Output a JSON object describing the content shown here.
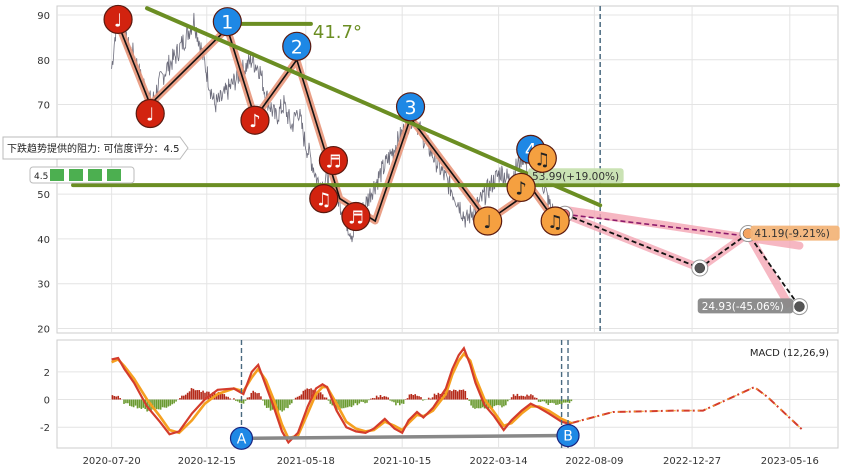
{
  "chart_data": {
    "type": "line",
    "colors": {
      "price": "#555566",
      "trend": "#6b8e23",
      "wave": "#e8967a",
      "red_marker": "#d2230f",
      "blue_marker": "#1e88e5",
      "orange_marker": "#f5a040",
      "macd_line": "#d43c2c",
      "signal_line": "#f5a020",
      "hist_pos": "#b52a1a",
      "hist_neg": "#6a9a30",
      "forecast": "#f4a6b4"
    },
    "x_tick_labels": [
      "2020-07-20",
      "2020-12-15",
      "2021-05-18",
      "2021-10-15",
      "2022-03-14",
      "2022-08-09",
      "2022-12-27",
      "2023-05-16"
    ],
    "x_ticks": [
      0,
      148,
      302,
      452,
      602,
      751,
      903,
      1055
    ],
    "current_index": 760,
    "price_axis": {
      "ylim": [
        19,
        92
      ],
      "ticks": [
        20,
        30,
        40,
        50,
        60,
        70,
        80,
        90
      ]
    },
    "macd_axis": {
      "ylim": [
        -3.5,
        4.3
      ],
      "ticks": [
        -2,
        0,
        2
      ],
      "label": "MACD (12,26,9)"
    },
    "price_series": [
      [
        0,
        78
      ],
      [
        5,
        85
      ],
      [
        10,
        91
      ],
      [
        15,
        87
      ],
      [
        25,
        83
      ],
      [
        35,
        81
      ],
      [
        45,
        76
      ],
      [
        55,
        73
      ],
      [
        62,
        70
      ],
      [
        72,
        74
      ],
      [
        85,
        78
      ],
      [
        100,
        81
      ],
      [
        115,
        85
      ],
      [
        128,
        89
      ],
      [
        140,
        82
      ],
      [
        150,
        76
      ],
      [
        160,
        70
      ],
      [
        170,
        71
      ],
      [
        185,
        74
      ],
      [
        200,
        77
      ],
      [
        218,
        80
      ],
      [
        230,
        78
      ],
      [
        240,
        72
      ],
      [
        255,
        67
      ],
      [
        268,
        70
      ],
      [
        280,
        65
      ],
      [
        290,
        69
      ],
      [
        300,
        62
      ],
      [
        312,
        57
      ],
      [
        320,
        53
      ],
      [
        330,
        52
      ],
      [
        340,
        55
      ],
      [
        348,
        51
      ],
      [
        358,
        47
      ],
      [
        368,
        43
      ],
      [
        375,
        41
      ],
      [
        383,
        44
      ],
      [
        393,
        47
      ],
      [
        405,
        51
      ],
      [
        420,
        55
      ],
      [
        435,
        59
      ],
      [
        450,
        63
      ],
      [
        462,
        66
      ],
      [
        470,
        68
      ],
      [
        480,
        64
      ],
      [
        495,
        60
      ],
      [
        510,
        56
      ],
      [
        525,
        52
      ],
      [
        540,
        48
      ],
      [
        552,
        44
      ],
      [
        560,
        46
      ],
      [
        572,
        48
      ],
      [
        590,
        52
      ],
      [
        605,
        55
      ],
      [
        620,
        53
      ],
      [
        630,
        56
      ],
      [
        640,
        59
      ],
      [
        648,
        55
      ],
      [
        655,
        52
      ],
      [
        665,
        55
      ],
      [
        672,
        52
      ],
      [
        680,
        48
      ],
      [
        690,
        45
      ],
      [
        700,
        44
      ]
    ],
    "wave_path": [
      [
        10,
        88
      ],
      [
        60,
        70
      ],
      [
        180,
        87
      ],
      [
        223,
        67
      ],
      [
        288,
        80
      ],
      [
        355,
        49
      ],
      [
        410,
        44
      ],
      [
        465,
        67
      ],
      [
        585,
        44
      ],
      [
        655,
        51
      ],
      [
        690,
        44
      ]
    ],
    "trend_lines": [
      {
        "from": [
          55,
          91.5
        ],
        "to": [
          760,
          47.5
        ],
        "label": "41.7°"
      },
      {
        "from": [
          -60,
          52
        ],
        "to": [
          1130,
          52
        ]
      },
      {
        "from": [
          165,
          88
        ],
        "to": [
          310,
          88
        ]
      }
    ],
    "forecast_path": [
      [
        705,
        45.5
      ],
      [
        915,
        33.5
      ],
      [
        990,
        41.2
      ],
      [
        1055,
        24.9
      ]
    ],
    "forecast_band_upper": [
      [
        705,
        46.5
      ],
      [
        1070,
        38.5
      ]
    ],
    "forecast_band_lower": [
      [
        705,
        44.5
      ],
      [
        1070,
        24
      ]
    ],
    "forecast_dashed": [
      [
        705,
        45.5
      ],
      [
        990,
        40.6
      ]
    ],
    "forecast_endpoint": [
      1070,
      40.4
    ],
    "price_annotations": [
      {
        "x": 654,
        "y": 53.99,
        "text": "53.99(+19.00%)",
        "color": "#c7e0b0",
        "text_color": "#333333"
      },
      {
        "x": 1000,
        "y": 41.19,
        "text": "41.19(-9.21%)",
        "color": "#f3b57a",
        "text_color": "#333333"
      },
      {
        "x": 918,
        "y": 24.93,
        "text": "24.93(-45.06%)",
        "color": "#888888",
        "text_color": "#ffffff"
      }
    ],
    "resistance_label": "下跌趋势提供的阻力: 可信度评分：4.5",
    "resistance_score": "4.5",
    "markers": [
      {
        "x": 10,
        "y": 89,
        "kind": "red",
        "glyph": "♩"
      },
      {
        "x": 60,
        "y": 68,
        "kind": "red",
        "glyph": "♩"
      },
      {
        "x": 180,
        "y": 88.5,
        "kind": "blue",
        "glyph": "1"
      },
      {
        "x": 223,
        "y": 66.5,
        "kind": "red",
        "glyph": "♪"
      },
      {
        "x": 288,
        "y": 83,
        "kind": "blue",
        "glyph": "2"
      },
      {
        "x": 345,
        "y": 57.5,
        "kind": "red",
        "glyph": "♬"
      },
      {
        "x": 330,
        "y": 49,
        "kind": "red",
        "glyph": "♫"
      },
      {
        "x": 380,
        "y": 45,
        "kind": "red",
        "glyph": "♬"
      },
      {
        "x": 465,
        "y": 69.5,
        "kind": "blue",
        "glyph": "3"
      },
      {
        "x": 585,
        "y": 44,
        "kind": "orange",
        "glyph": "♩"
      },
      {
        "x": 652,
        "y": 60,
        "kind": "blue",
        "glyph": "4"
      },
      {
        "x": 670,
        "y": 58,
        "kind": "orange",
        "glyph": "♫"
      },
      {
        "x": 637,
        "y": 51.5,
        "kind": "orange",
        "glyph": "♪"
      },
      {
        "x": 690,
        "y": 44,
        "kind": "orange",
        "glyph": "♫"
      }
    ],
    "forecast_nodes": [
      [
        705,
        45.5
      ],
      [
        915,
        33.5
      ],
      [
        990,
        41.2
      ],
      [
        1070,
        24.9
      ]
    ],
    "macd_series": [
      [
        0,
        2.9
      ],
      [
        10,
        3.0
      ],
      [
        20,
        2.2
      ],
      [
        35,
        1.2
      ],
      [
        55,
        -0.5
      ],
      [
        75,
        -1.6
      ],
      [
        90,
        -2.5
      ],
      [
        105,
        -2.3
      ],
      [
        125,
        -1.0
      ],
      [
        145,
        0.0
      ],
      [
        165,
        0.7
      ],
      [
        190,
        0.8
      ],
      [
        205,
        0.4
      ],
      [
        218,
        2.0
      ],
      [
        228,
        2.5
      ],
      [
        240,
        1.0
      ],
      [
        252,
        -0.5
      ],
      [
        265,
        -2.3
      ],
      [
        275,
        -3.1
      ],
      [
        290,
        -2.4
      ],
      [
        305,
        -0.5
      ],
      [
        318,
        0.8
      ],
      [
        328,
        1.1
      ],
      [
        335,
        0.9
      ],
      [
        350,
        -0.8
      ],
      [
        365,
        -2.0
      ],
      [
        380,
        -2.3
      ],
      [
        395,
        -2.4
      ],
      [
        408,
        -2.1
      ],
      [
        425,
        -1.4
      ],
      [
        440,
        -2.1
      ],
      [
        452,
        -2.4
      ],
      [
        462,
        -1.5
      ],
      [
        475,
        -0.9
      ],
      [
        485,
        -1.3
      ],
      [
        500,
        -0.6
      ],
      [
        520,
        0.8
      ],
      [
        530,
        2.2
      ],
      [
        540,
        3.2
      ],
      [
        548,
        3.7
      ],
      [
        558,
        2.5
      ],
      [
        566,
        1.2
      ],
      [
        580,
        -0.4
      ],
      [
        595,
        -1.2
      ],
      [
        610,
        -2.2
      ],
      [
        622,
        -1.5
      ],
      [
        638,
        -0.8
      ],
      [
        652,
        -0.3
      ],
      [
        665,
        -0.6
      ],
      [
        680,
        -1.0
      ],
      [
        700,
        -1.6
      ],
      [
        715,
        -1.8
      ]
    ],
    "signal_series": [
      [
        0,
        2.7
      ],
      [
        10,
        2.9
      ],
      [
        20,
        2.4
      ],
      [
        35,
        1.5
      ],
      [
        55,
        0.0
      ],
      [
        75,
        -1.2
      ],
      [
        90,
        -2.2
      ],
      [
        105,
        -2.4
      ],
      [
        125,
        -1.5
      ],
      [
        145,
        -0.3
      ],
      [
        165,
        0.4
      ],
      [
        190,
        0.8
      ],
      [
        205,
        0.6
      ],
      [
        218,
        1.6
      ],
      [
        228,
        2.2
      ],
      [
        240,
        1.4
      ],
      [
        252,
        0.0
      ],
      [
        265,
        -1.8
      ],
      [
        275,
        -2.8
      ],
      [
        290,
        -2.6
      ],
      [
        305,
        -1.0
      ],
      [
        318,
        0.4
      ],
      [
        328,
        0.9
      ],
      [
        335,
        0.9
      ],
      [
        350,
        -0.3
      ],
      [
        365,
        -1.6
      ],
      [
        380,
        -2.1
      ],
      [
        395,
        -2.3
      ],
      [
        408,
        -2.2
      ],
      [
        425,
        -1.6
      ],
      [
        440,
        -1.9
      ],
      [
        452,
        -2.2
      ],
      [
        462,
        -1.7
      ],
      [
        475,
        -1.1
      ],
      [
        485,
        -1.2
      ],
      [
        500,
        -0.8
      ],
      [
        520,
        0.4
      ],
      [
        530,
        1.8
      ],
      [
        540,
        2.8
      ],
      [
        548,
        3.3
      ],
      [
        558,
        2.8
      ],
      [
        566,
        1.6
      ],
      [
        580,
        0.0
      ],
      [
        595,
        -0.9
      ],
      [
        610,
        -1.9
      ],
      [
        622,
        -1.7
      ],
      [
        638,
        -1.0
      ],
      [
        652,
        -0.5
      ],
      [
        665,
        -0.5
      ],
      [
        680,
        -0.8
      ],
      [
        700,
        -1.4
      ],
      [
        715,
        -1.7
      ]
    ],
    "macd_forecast": [
      [
        715,
        -1.7
      ],
      [
        780,
        -0.9
      ],
      [
        880,
        -0.8
      ],
      [
        920,
        -0.8
      ],
      [
        1000,
        0.9
      ],
      [
        1020,
        0.2
      ],
      [
        1075,
        -2.2
      ]
    ],
    "macd_markers": [
      {
        "x": 202,
        "y": -2.8,
        "glyph": "A"
      },
      {
        "x": 710,
        "y": -2.6,
        "glyph": "B"
      }
    ],
    "macd_divergence": {
      "from": [
        202,
        -2.8
      ],
      "to": [
        710,
        -2.6
      ]
    },
    "macd_vlines": [
      202,
      700,
      710
    ]
  }
}
